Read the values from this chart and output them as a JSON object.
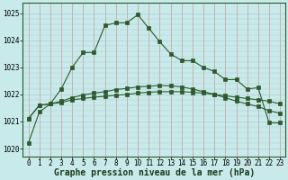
{
  "background_color": "#c8eaea",
  "grid_color_v": "#cc9999",
  "grid_color_h": "#aacccc",
  "line_color": "#2d5a2d",
  "xlabel": "Graphe pression niveau de la mer (hPa)",
  "ylim": [
    1019.7,
    1025.4
  ],
  "xlim": [
    -0.5,
    23.5
  ],
  "yticks": [
    1020,
    1021,
    1022,
    1023,
    1024,
    1025
  ],
  "xticks": [
    0,
    1,
    2,
    3,
    4,
    5,
    6,
    7,
    8,
    9,
    10,
    11,
    12,
    13,
    14,
    15,
    16,
    17,
    18,
    19,
    20,
    21,
    22,
    23
  ],
  "series1_x": [
    0,
    1,
    2,
    3,
    4,
    5,
    6,
    7,
    8,
    9,
    10,
    11,
    12,
    13,
    14,
    15,
    16,
    17,
    18,
    19,
    20,
    21,
    22,
    23
  ],
  "series1_y": [
    1020.2,
    1021.35,
    1021.65,
    1022.2,
    1023.0,
    1023.55,
    1023.55,
    1024.55,
    1024.65,
    1024.65,
    1024.95,
    1024.45,
    1023.95,
    1023.5,
    1023.25,
    1023.25,
    1023.0,
    1022.85,
    1022.55,
    1022.55,
    1022.2,
    1022.25,
    1020.95,
    1020.95
  ],
  "series2_x": [
    0,
    1,
    2,
    3,
    4,
    5,
    6,
    7,
    8,
    9,
    10,
    11,
    12,
    13,
    14,
    15,
    16,
    17,
    18,
    19,
    20,
    21,
    22,
    23
  ],
  "series2_y": [
    1021.1,
    1021.6,
    1021.65,
    1021.7,
    1021.8,
    1021.85,
    1021.9,
    1021.93,
    1021.97,
    1022.0,
    1022.05,
    1022.08,
    1022.1,
    1022.1,
    1022.1,
    1022.08,
    1022.05,
    1022.0,
    1021.95,
    1021.9,
    1021.85,
    1021.8,
    1021.75,
    1021.65
  ],
  "series3_x": [
    0,
    1,
    2,
    3,
    4,
    5,
    6,
    7,
    8,
    9,
    10,
    11,
    12,
    13,
    14,
    15,
    16,
    17,
    18,
    19,
    20,
    21,
    22,
    23
  ],
  "series3_y": [
    1021.1,
    1021.6,
    1021.65,
    1021.75,
    1021.88,
    1021.98,
    1022.05,
    1022.1,
    1022.18,
    1022.22,
    1022.28,
    1022.3,
    1022.33,
    1022.32,
    1022.28,
    1022.2,
    1022.1,
    1022.0,
    1021.88,
    1021.75,
    1021.65,
    1021.55,
    1021.4,
    1021.3
  ],
  "xlabel_fontsize": 7,
  "tick_fontsize": 5.5
}
